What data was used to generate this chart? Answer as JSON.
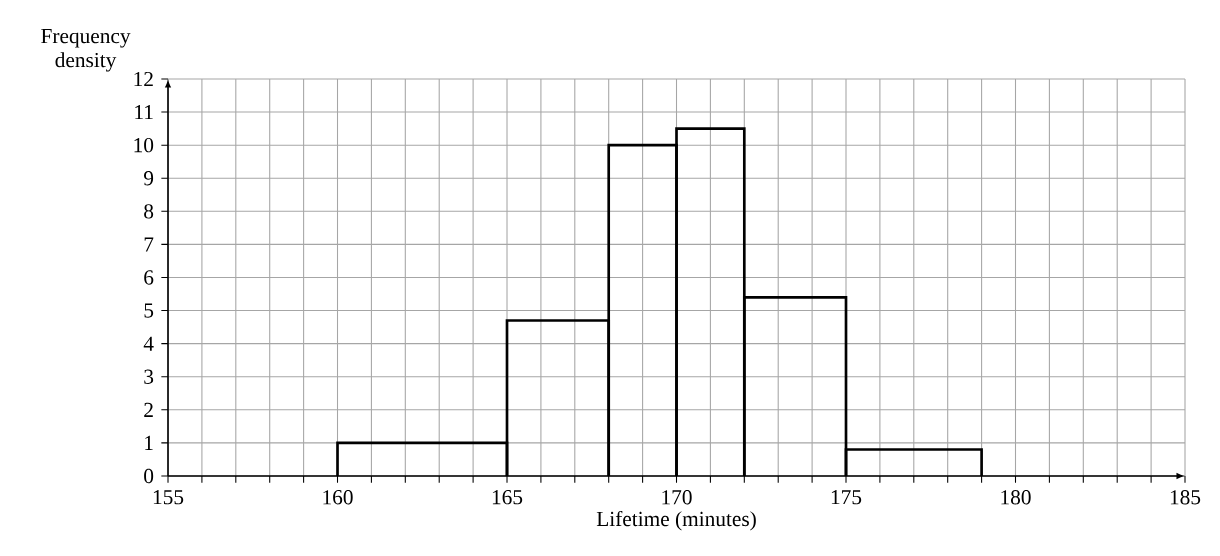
{
  "chart_data": {
    "type": "histogram",
    "xlabel": "Lifetime (minutes)",
    "ylabel": "Frequency density",
    "bins": [
      160,
      165,
      168,
      170,
      172,
      175,
      179
    ],
    "values": [
      1,
      4.7,
      10,
      10.5,
      5.4,
      0.8
    ],
    "color": "#000000",
    "xlim": [
      155,
      185
    ],
    "ylim": [
      0,
      12
    ],
    "xticks": [
      155,
      {
        "value": 156,
        "label": null
      },
      {
        "value": 157,
        "label": null
      },
      {
        "value": 158,
        "label": null
      },
      {
        "value": 159,
        "label": null
      },
      160,
      {
        "value": 161,
        "label": null
      },
      {
        "value": 162,
        "label": null
      },
      {
        "value": 163,
        "label": null
      },
      {
        "value": 164,
        "label": null
      },
      165,
      {
        "value": 166,
        "label": null
      },
      {
        "value": 167,
        "label": null
      },
      {
        "value": 168,
        "label": null
      },
      {
        "value": 169,
        "label": null
      },
      170,
      {
        "value": 171,
        "label": null
      },
      {
        "value": 172,
        "label": null
      },
      {
        "value": 173,
        "label": null
      },
      {
        "value": 174,
        "label": null
      },
      175,
      {
        "value": 176,
        "label": null
      },
      {
        "value": 177,
        "label": null
      },
      {
        "value": 178,
        "label": null
      },
      {
        "value": 179,
        "label": null
      },
      180,
      {
        "value": 181,
        "label": null
      },
      {
        "value": 182,
        "label": null
      },
      {
        "value": 183,
        "label": null
      },
      {
        "value": 184,
        "label": null
      },
      185
    ],
    "yticks": [
      0,
      1,
      2,
      3,
      4,
      5,
      6,
      7,
      8,
      9,
      10,
      11,
      12
    ],
    "grid": true
  }
}
